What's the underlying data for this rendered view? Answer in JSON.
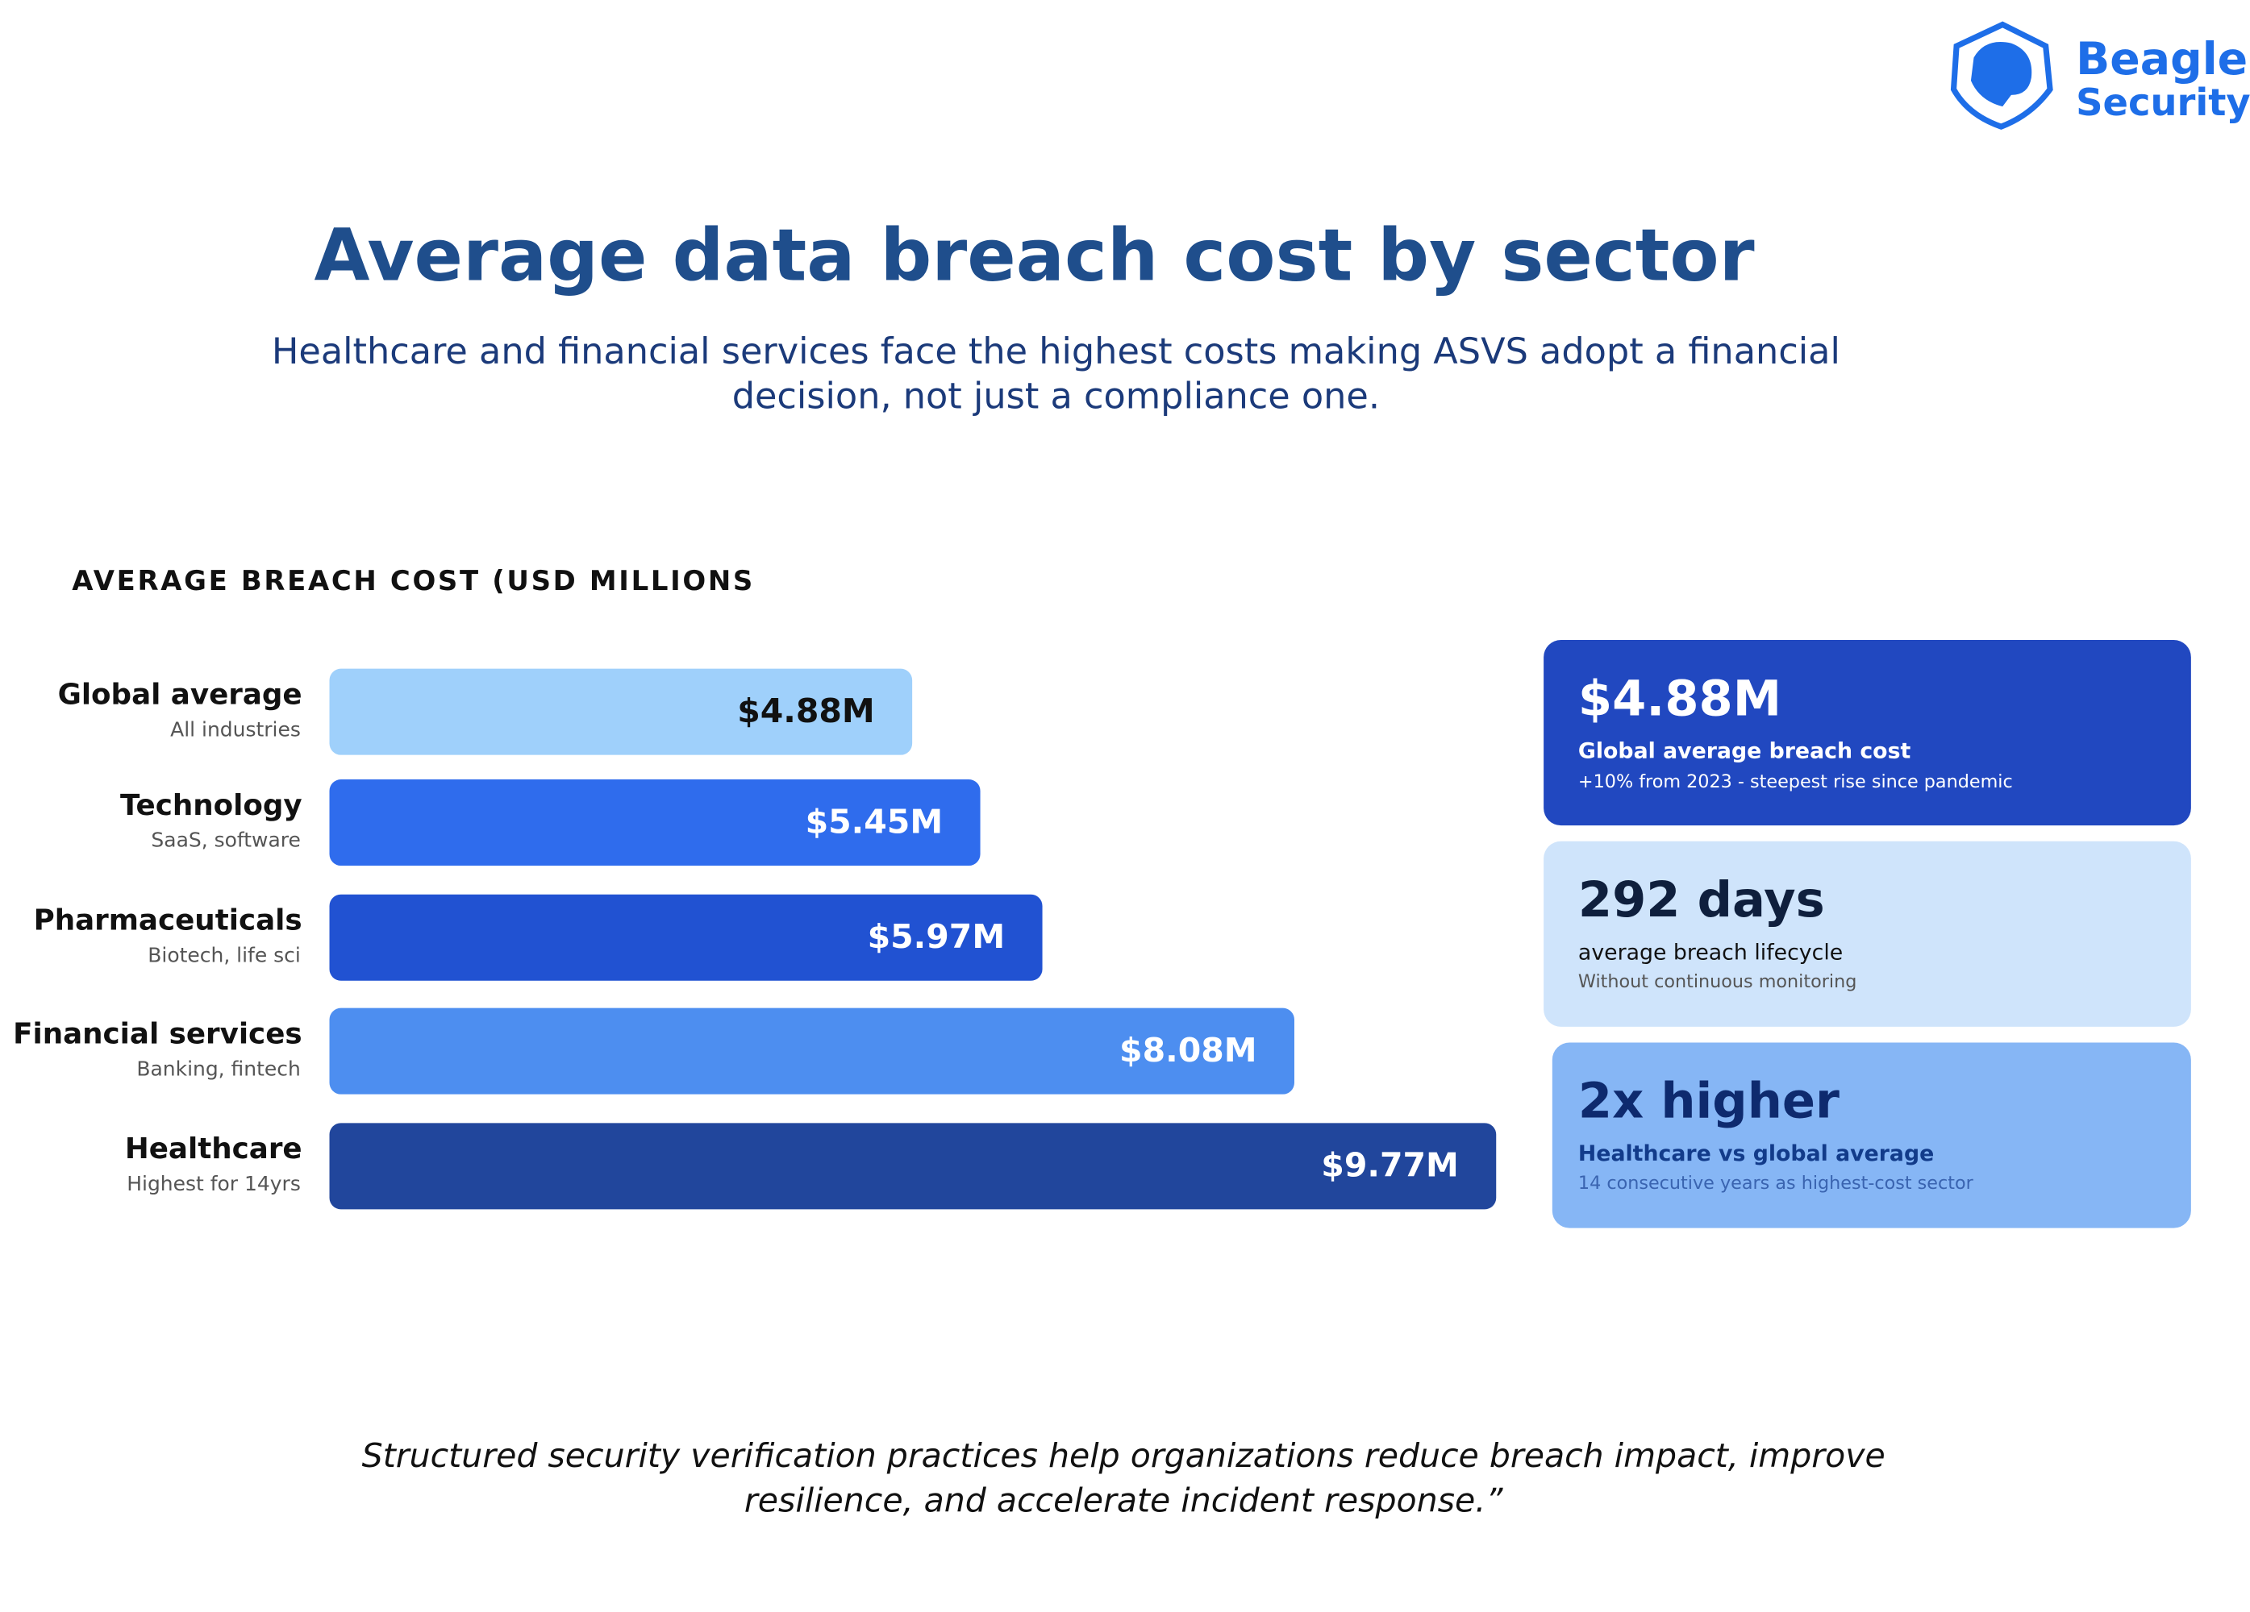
{
  "logo": {
    "line1": "Beagle",
    "line2": "Security"
  },
  "chart_data": {
    "type": "bar",
    "orientation": "horizontal",
    "title": "Average data breach cost by sector",
    "subtitle": [
      "Healthcare and financial services face the highest costs  making ASVS adopt a financial",
      "decision, not just a compliance one."
    ],
    "value_axis_label": "AVERAGE BREACH COST (USD MILLIONS",
    "categories": [
      "Global average",
      "Technology",
      "Pharmaceuticals",
      "Financial services",
      "Healthcare"
    ],
    "category_notes": [
      "All industries",
      "SaaS, software",
      "Biotech, life sci",
      "Banking, fintech",
      "Highest for 14yrs"
    ],
    "values": [
      4.88,
      5.45,
      5.97,
      8.08,
      9.77
    ],
    "value_labels": [
      "$4.88M",
      "$5.45M",
      "$5.97M",
      "$8.08M",
      "$9.77M"
    ],
    "colors": [
      "#9fd0fb",
      "#2f6ced",
      "#2152d2",
      "#4d8ef0",
      "#21469c"
    ]
  },
  "stats": [
    {
      "value": "$4.88M",
      "label": "Global average breach cost",
      "note": "+10% from 2023 - steepest rise since pandemic"
    },
    {
      "value": "292 days",
      "label": "average breach lifecycle",
      "note": "Without continuous monitoring"
    },
    {
      "value": "2x higher",
      "label": "Healthcare vs global average",
      "note": "14 consecutive years as highest-cost sector"
    }
  ],
  "footer": [
    "Structured security verification practices help organizations reduce breach impact, improve",
    "resilience, and accelerate incident response.”"
  ]
}
